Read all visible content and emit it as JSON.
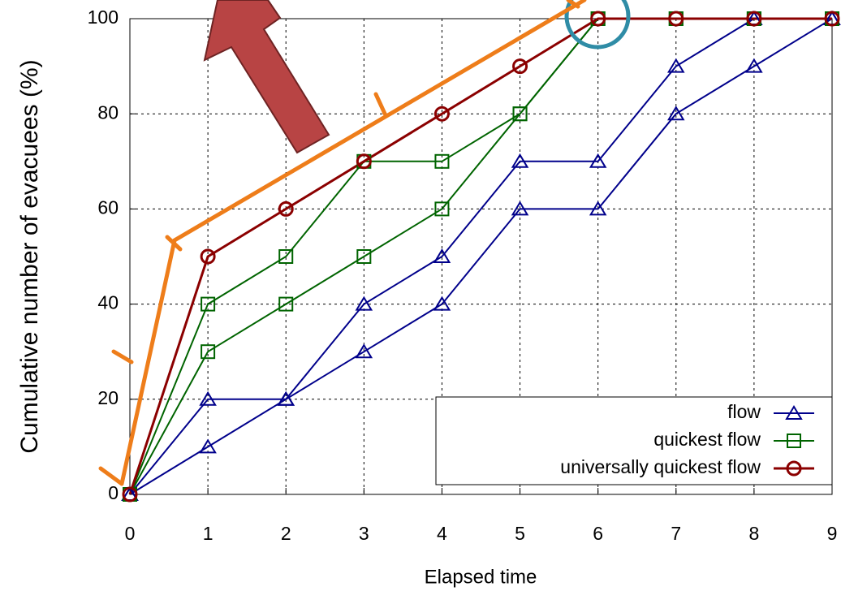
{
  "chart_data": {
    "type": "line",
    "x_label": "Elapsed time",
    "y_label": "Cumulative number of evacuees (%)",
    "x": [
      0,
      1,
      2,
      3,
      4,
      5,
      6,
      7,
      8,
      9
    ],
    "xlim": [
      0,
      9
    ],
    "xticks": [
      0,
      1,
      2,
      3,
      4,
      5,
      6,
      7,
      8,
      9
    ],
    "ylim": [
      0,
      100
    ],
    "yticks": [
      0,
      20,
      40,
      60,
      80,
      100
    ],
    "grid": true,
    "legend": "lower right",
    "series": [
      {
        "name": "flow",
        "color": "#00008b",
        "marker": "triangle",
        "lines": [
          [
            0,
            20,
            20,
            40,
            50,
            70,
            70,
            90,
            100,
            100
          ],
          [
            0,
            10,
            20,
            30,
            40,
            60,
            60,
            80,
            90,
            100
          ]
        ]
      },
      {
        "name": "quickest flow",
        "color": "#006400",
        "marker": "square",
        "lines": [
          [
            0,
            40,
            50,
            70,
            70,
            80,
            100,
            100,
            100,
            100
          ],
          [
            0,
            30,
            40,
            50,
            60,
            80,
            100,
            100,
            100,
            100
          ]
        ]
      },
      {
        "name": "universally quickest flow",
        "color": "#8b0000",
        "marker": "circle",
        "lines": [
          [
            0,
            50,
            60,
            70,
            80,
            90,
            100,
            100,
            100,
            100
          ]
        ]
      }
    ]
  }
}
